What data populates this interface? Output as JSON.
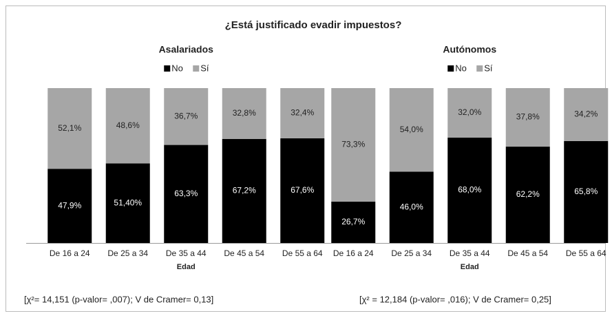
{
  "title": "¿Está justificado evadir impuestos?",
  "chart_data": [
    {
      "type": "bar",
      "stacked": true,
      "title": "Asalariados",
      "x_label": "Edad",
      "categories": [
        "De 16 a 24",
        "De 25 a 34",
        "De 35 a 44",
        "De 45 a 54",
        "De 55 a 64"
      ],
      "series": [
        {
          "name": "No",
          "color": "#000000",
          "values": [
            47.9,
            51.4,
            63.3,
            67.2,
            67.6
          ],
          "value_labels": [
            "47,9%",
            "51,40%",
            "63,3%",
            "67,2%",
            "67,6%"
          ]
        },
        {
          "name": "Sí",
          "color": "#a6a6a6",
          "values": [
            52.1,
            48.6,
            36.7,
            32.8,
            32.4
          ],
          "value_labels": [
            "52,1%",
            "48,6%",
            "36,7%",
            "32,8%",
            "32,4%"
          ]
        }
      ],
      "ylim": [
        0,
        100
      ],
      "legend": "top",
      "note": "[χ²= 14,151 (p-valor= ,007); V de Cramer= 0,13]"
    },
    {
      "type": "bar",
      "stacked": true,
      "title": "Autónomos",
      "x_label": "Edad",
      "categories": [
        "De 16 a 24",
        "De 25 a 34",
        "De 35 a 44",
        "De 45 a 54",
        "De 55 a 64"
      ],
      "series": [
        {
          "name": "No",
          "color": "#000000",
          "values": [
            26.7,
            46.0,
            68.0,
            62.2,
            65.8
          ],
          "value_labels": [
            "26,7%",
            "46,0%",
            "68,0%",
            "62,2%",
            "65,8%"
          ]
        },
        {
          "name": "Sí",
          "color": "#a6a6a6",
          "values": [
            73.3,
            54.0,
            32.0,
            37.8,
            34.2
          ],
          "value_labels": [
            "73,3%",
            "54,0%",
            "32,0%",
            "37,8%",
            "34,2%"
          ]
        }
      ],
      "ylim": [
        0,
        100
      ],
      "legend": "top",
      "note": "[χ² = 12,184 (p-valor= ,016); V de Cramer= 0,25]"
    }
  ]
}
